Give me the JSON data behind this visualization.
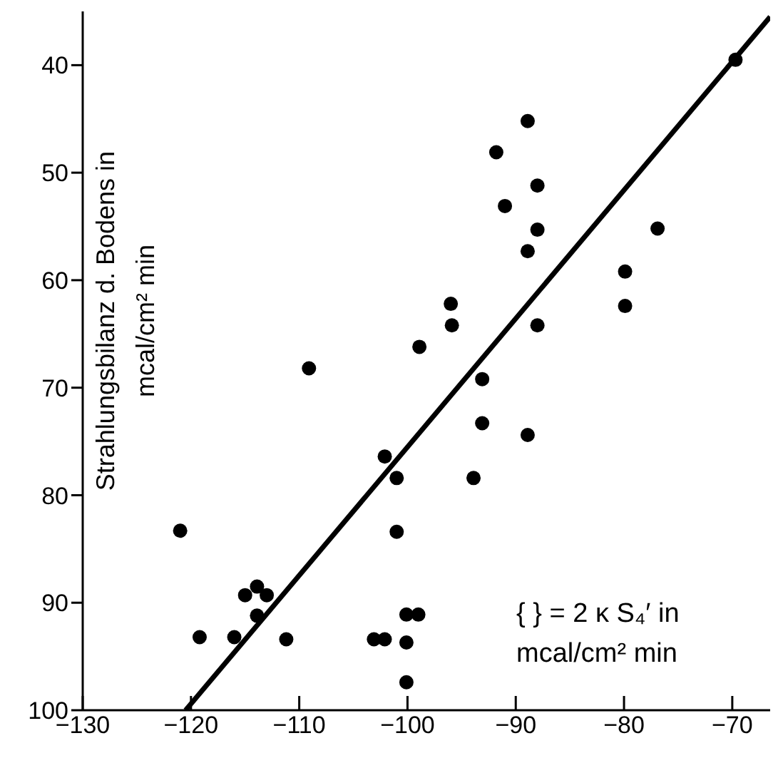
{
  "chart_data": {
    "type": "scatter",
    "ylabel": "Strahlungsbilanz d. Bodens in mcal/cm² min",
    "annotations": [
      "{ } = 2 κ S₄′ in mcal/cm² min"
    ],
    "xlim": [
      -130,
      -66.5
    ],
    "xticks": [
      -130,
      -120,
      -110,
      -100,
      -90,
      -80,
      -70
    ],
    "ylim": [
      100,
      35
    ],
    "yticks": [
      40,
      50,
      60,
      70,
      80,
      90,
      100
    ],
    "grid": false,
    "legend": false,
    "series": [
      {
        "marker": "circle",
        "color": "#000000",
        "x": [
          -121.0,
          -119.2,
          -116.0,
          -115.0,
          -113.9,
          -113.0,
          -113.9,
          -111.2,
          -109.1,
          -103.1,
          -102.1,
          -102.1,
          -101.0,
          -101.0,
          -100.1,
          -99.0,
          -100.1,
          -100.1,
          -98.9,
          -96.0,
          -95.9,
          -93.9,
          -93.1,
          -93.1,
          -91.8,
          -91.0,
          -88.9,
          -88.9,
          -88.0,
          -88.0,
          -88.0,
          -88.9,
          -79.9,
          -79.9,
          -76.9,
          -69.7
        ],
        "values": [
          83.3,
          93.2,
          93.2,
          89.3,
          88.5,
          89.3,
          91.2,
          93.4,
          68.2,
          93.4,
          93.4,
          76.4,
          78.4,
          83.4,
          91.1,
          91.1,
          93.7,
          97.4,
          66.2,
          62.2,
          64.2,
          78.4,
          69.2,
          73.3,
          48.1,
          53.1,
          45.2,
          57.3,
          51.2,
          55.3,
          64.2,
          74.4,
          59.2,
          62.4,
          55.2,
          39.5
        ]
      },
      {
        "type": "line",
        "color": "#000000",
        "line_style": "solid",
        "x": [
          -120.5,
          -66.5
        ],
        "values": [
          100,
          35.5
        ]
      }
    ]
  }
}
